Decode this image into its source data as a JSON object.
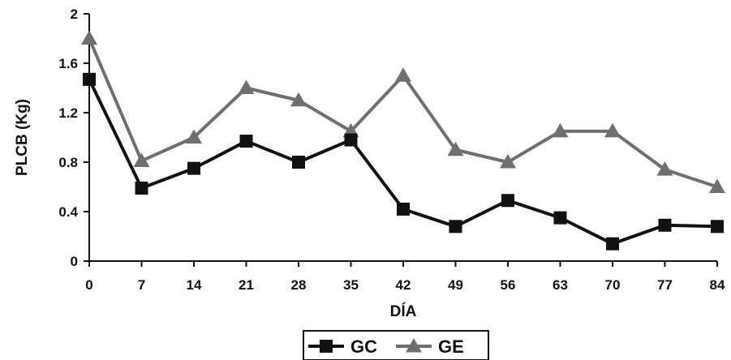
{
  "chart_data": {
    "type": "line",
    "title": "",
    "xlabel": "DÍA",
    "ylabel": "PLCB (Kg)",
    "x": [
      0,
      7,
      14,
      21,
      28,
      35,
      42,
      49,
      56,
      63,
      70,
      77,
      84
    ],
    "x_tick_labels": [
      "0",
      "7",
      "14",
      "21",
      "28",
      "35",
      "42",
      "49",
      "56",
      "63",
      "70",
      "77",
      "84"
    ],
    "xlim": [
      0,
      84
    ],
    "ylim": [
      0,
      2
    ],
    "y_ticks": [
      0,
      0.4,
      0.8,
      1.2,
      1.6,
      2
    ],
    "y_tick_labels": [
      "0",
      "0.4",
      "0.8",
      "1.2",
      "1.6",
      "2"
    ],
    "grid": false,
    "legend_position": "bottom-center",
    "series": [
      {
        "name": "GC",
        "marker": "square",
        "color": "#111111",
        "values": [
          1.47,
          0.59,
          0.75,
          0.97,
          0.8,
          0.98,
          0.42,
          0.28,
          0.49,
          0.35,
          0.14,
          0.29,
          0.28
        ]
      },
      {
        "name": "GE",
        "marker": "triangle",
        "color": "#6f6f6f",
        "values": [
          1.8,
          0.81,
          1.0,
          1.4,
          1.3,
          1.05,
          1.5,
          0.9,
          0.8,
          1.05,
          1.05,
          0.74,
          0.6
        ]
      }
    ]
  }
}
